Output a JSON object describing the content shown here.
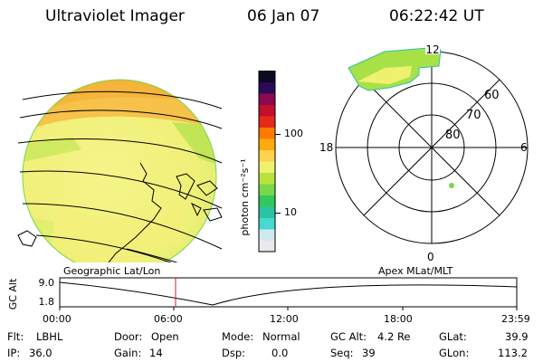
{
  "header": {
    "instrument": "Ultraviolet Imager",
    "date": "06 Jan 07",
    "time": "06:22:42 UT"
  },
  "colorbar": {
    "unit_label": "photon cm⁻²s⁻¹",
    "ticks": [
      "100",
      "10"
    ],
    "colors": [
      "#e8e8ee",
      "#cfe9ef",
      "#48d8d0",
      "#2cc3a5",
      "#32c85c",
      "#7ad64a",
      "#b9e23d",
      "#eef070",
      "#ffd34d",
      "#ffab10",
      "#ff7a00",
      "#e62a1a",
      "#c0102a",
      "#8a0a50",
      "#2a0a5a",
      "#0a0a20"
    ]
  },
  "polar": {
    "mlt_labels": {
      "top": "12",
      "left": "18",
      "right": "6",
      "bottom": "0"
    },
    "lat_labels": [
      "60",
      "70",
      "80"
    ]
  },
  "timeline": {
    "left_title": "Geographic Lat/Lon",
    "right_title": "Apex MLat/MLT",
    "y_axis_label": "GC Alt",
    "y_ticks": [
      "9.0",
      "1.8"
    ],
    "x_ticks": [
      "00:00",
      "06:00",
      "12:00",
      "18:00",
      "23:59"
    ],
    "marker_color": "#cc2222"
  },
  "status": {
    "flt_label": "Flt:",
    "flt_value": "LBHL",
    "ip_label": "IP:",
    "ip_value": "36.0",
    "door_label": "Door:",
    "door_value": "Open",
    "gain_label": "Gain:",
    "gain_value": "14",
    "mode_label": "Mode:",
    "mode_value": "Normal",
    "dsp_label": "Dsp:",
    "dsp_value": "0.0",
    "gcalt_label": "GC Alt:",
    "gcalt_value": "4.2 Re",
    "seq_label": "Seq:",
    "seq_value": "39",
    "glat_label": "GLat:",
    "glat_value": "39.9",
    "glon_label": "GLon:",
    "glon_value": "113.2"
  }
}
